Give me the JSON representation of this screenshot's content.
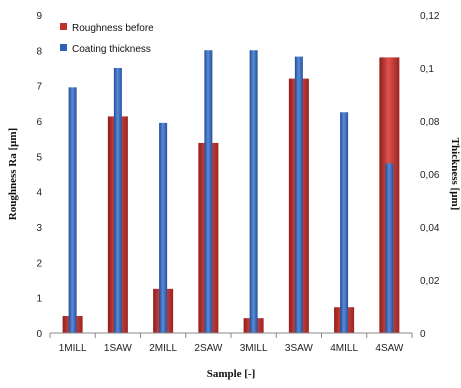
{
  "chart_data": {
    "type": "bar",
    "categories": [
      "1MILL",
      "1SAW",
      "2MILL",
      "2SAW",
      "3MILL",
      "3SAW",
      "4MILL",
      "4SAW"
    ],
    "xlabel": "Sample [-]",
    "ylabel": "Roughness Ra [μm]",
    "y2label": "Thickness [μm]",
    "ylim": [
      0,
      9
    ],
    "y2lim": [
      0,
      0.12
    ],
    "y_ticks": [
      "0",
      "1",
      "2",
      "3",
      "4",
      "5",
      "6",
      "7",
      "8",
      "9"
    ],
    "y2_ticks": [
      "0",
      "0,02",
      "0,04",
      "0,06",
      "0,08",
      "0,1",
      "0,12"
    ],
    "legend_position": "top-left",
    "series": [
      {
        "name": "Roughness before",
        "axis": "left",
        "color": "#c0302c",
        "values": [
          0.48,
          6.13,
          1.25,
          5.38,
          0.42,
          7.2,
          0.73,
          7.8
        ]
      },
      {
        "name": "Coating thickness",
        "axis": "right",
        "color": "#2e62b6",
        "values": [
          0.0927,
          0.1,
          0.0793,
          0.1067,
          0.1067,
          0.1043,
          0.0833,
          0.064
        ]
      }
    ]
  }
}
